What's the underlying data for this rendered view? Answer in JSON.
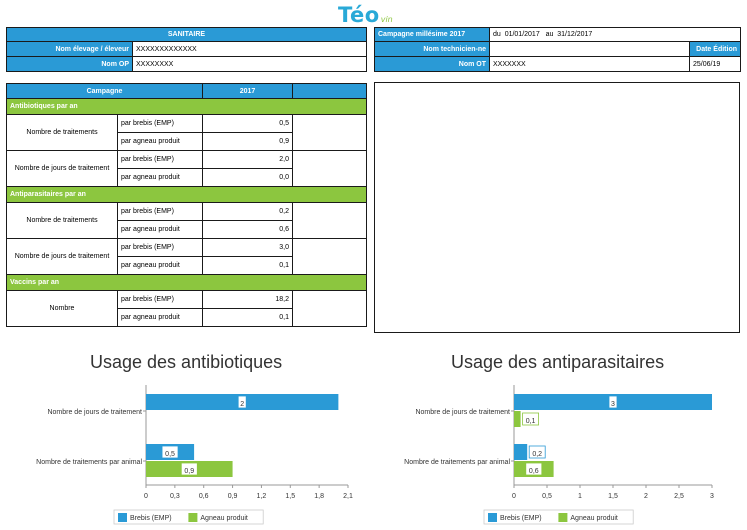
{
  "logo": {
    "main": "Téo",
    "sub": "vin"
  },
  "sanitaire": {
    "title": "SANITAIRE",
    "rows": [
      {
        "label": "Nom élevage / éleveur",
        "value": "XXXXXXXXXXXXX"
      },
      {
        "label": "Nom OP",
        "value": "XXXXXXXX"
      }
    ]
  },
  "campagne_info": {
    "label": "Campagne millésime 2017",
    "du_label": "du",
    "du_value": "01/01/2017",
    "au_label": "au",
    "au_value": "31/12/2017",
    "tech_label": "Nom technicien-ne",
    "tech_value": "",
    "date_label": "Date Édition",
    "ot_label": "Nom OT",
    "ot_value": "XXXXXXX",
    "date_value": "25/06/19"
  },
  "table": {
    "header_campagne": "Campagne",
    "header_year": "2017",
    "sections": [
      {
        "title": "Antibiotiques par an",
        "groups": [
          {
            "label": "Nombre de traitements",
            "rows": [
              {
                "sub": "par brebis (EMP)",
                "value": "0,5"
              },
              {
                "sub": "par agneau produit",
                "value": "0,9"
              }
            ]
          },
          {
            "label": "Nombre de jours de traitement",
            "rows": [
              {
                "sub": "par brebis (EMP)",
                "value": "2,0"
              },
              {
                "sub": "par agneau produit",
                "value": "0,0"
              }
            ]
          }
        ]
      },
      {
        "title": "Antiparasitaires par an",
        "groups": [
          {
            "label": "Nombre de traitements",
            "rows": [
              {
                "sub": "par brebis (EMP)",
                "value": "0,2"
              },
              {
                "sub": "par agneau produit",
                "value": "0,6"
              }
            ]
          },
          {
            "label": "Nombre de jours de traitement",
            "rows": [
              {
                "sub": "par brebis (EMP)",
                "value": "3,0"
              },
              {
                "sub": "par agneau produit",
                "value": "0,1"
              }
            ]
          }
        ]
      },
      {
        "title": "Vaccins par an",
        "groups": [
          {
            "label": "Nombre",
            "rows": [
              {
                "sub": "par brebis (EMP)",
                "value": "18,2"
              },
              {
                "sub": "par agneau produit",
                "value": "0,1"
              }
            ]
          }
        ]
      }
    ]
  },
  "colors": {
    "blue": "#2a9ad6",
    "green": "#8cc63f"
  },
  "chart_data": [
    {
      "type": "bar",
      "orientation": "horizontal",
      "title": "Usage des antibiotiques",
      "categories": [
        "Nombre de jours de traitement",
        "Nombre de traitements par animal"
      ],
      "series": [
        {
          "name": "Brebis (EMP)",
          "values": [
            2,
            0.5
          ],
          "labels": [
            "2",
            "0,5"
          ],
          "color": "#2a9ad6"
        },
        {
          "name": "Agneau produit",
          "values": [
            null,
            0.9
          ],
          "labels": [
            "",
            "0,9"
          ],
          "color": "#8cc63f"
        }
      ],
      "xlim": [
        0,
        2.1
      ],
      "xticks": [
        0,
        0.3,
        0.6,
        0.9,
        1.2,
        1.5,
        1.8,
        2.1
      ],
      "xtick_labels": [
        "0",
        "0,3",
        "0,6",
        "0,9",
        "1,2",
        "1,5",
        "1,8",
        "2,1"
      ],
      "legend": "bottom",
      "grid": false
    },
    {
      "type": "bar",
      "orientation": "horizontal",
      "title": "Usage des antiparasitaires",
      "categories": [
        "Nombre de jours de traitement",
        "Nombre de traitements par animal"
      ],
      "series": [
        {
          "name": "Brebis (EMP)",
          "values": [
            3,
            0.2
          ],
          "labels": [
            "3",
            "0,2"
          ],
          "color": "#2a9ad6"
        },
        {
          "name": "Agneau produit",
          "values": [
            0.1,
            0.6
          ],
          "labels": [
            "0,1",
            "0,6"
          ],
          "color": "#8cc63f"
        }
      ],
      "xlim": [
        0,
        3
      ],
      "xticks": [
        0,
        0.5,
        1,
        1.5,
        2,
        2.5,
        3
      ],
      "xtick_labels": [
        "0",
        "0,5",
        "1",
        "1,5",
        "2",
        "2,5",
        "3"
      ],
      "legend": "bottom",
      "grid": false
    }
  ]
}
